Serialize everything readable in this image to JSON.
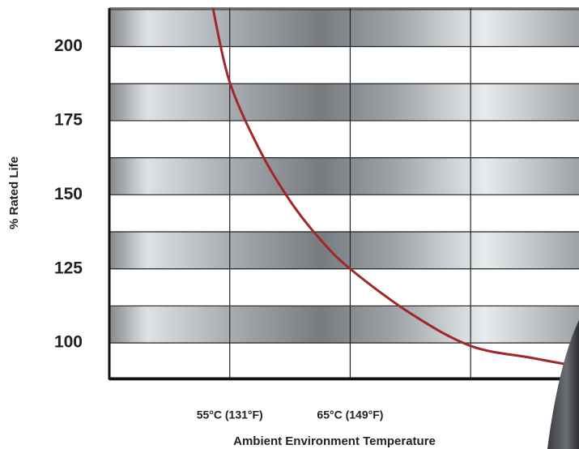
{
  "chart_data": {
    "type": "line",
    "x_label": "Ambient Environment Temperature",
    "y_label": "% Rated Life",
    "x": [
      53.6,
      55,
      57.5,
      60,
      62.5,
      65,
      70,
      75,
      80,
      84
    ],
    "values": [
      213,
      188,
      165,
      148,
      135,
      125,
      110,
      99,
      95,
      92
    ],
    "color": "#a0282a",
    "xlim": [
      45,
      84
    ],
    "ylim": [
      88,
      213
    ],
    "xticks": [
      {
        "value": 55,
        "label": "55°C (131°F)"
      },
      {
        "value": 65,
        "label": "65°C (149°F)"
      }
    ],
    "yticks": [
      100,
      125,
      150,
      175,
      200
    ],
    "grid": true
  }
}
